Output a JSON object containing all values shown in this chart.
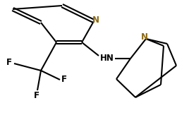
{
  "bg_color": "#ffffff",
  "bond_color": "#000000",
  "N_color": "#8B6914",
  "label_color": "#000000",
  "line_width": 1.5,
  "figsize": [
    2.68,
    1.63
  ],
  "dpi": 100,
  "xlim": [
    0,
    268
  ],
  "ylim": [
    0,
    163
  ]
}
